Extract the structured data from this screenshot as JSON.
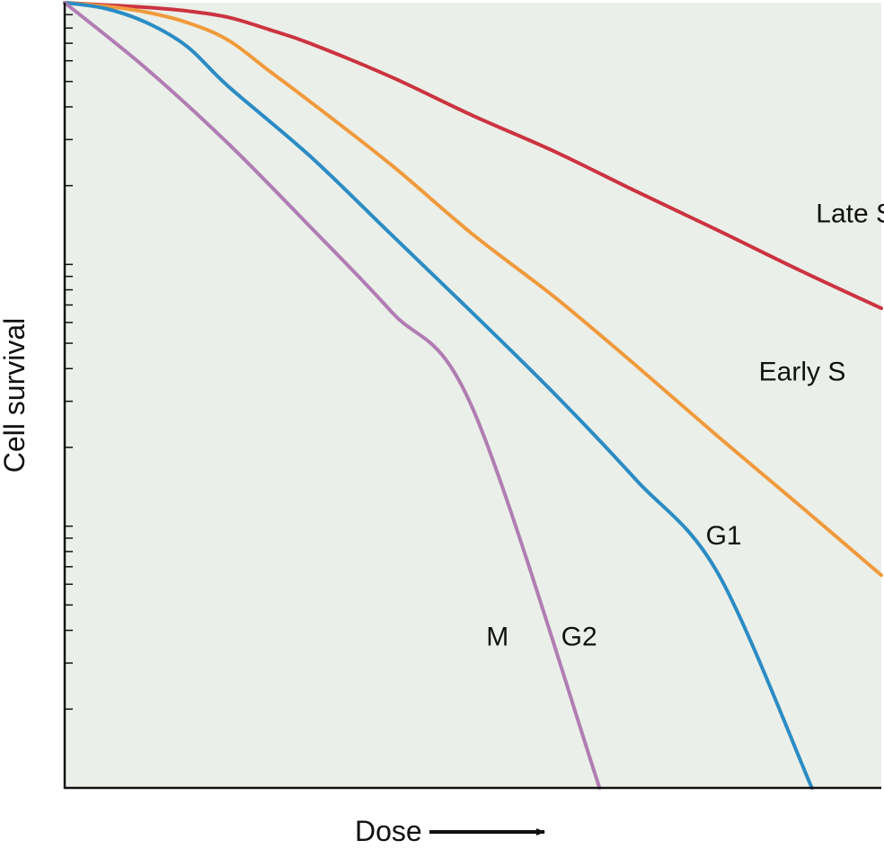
{
  "chart_data": {
    "type": "line",
    "title": "",
    "xlabel": "Dose",
    "ylabel": "Cell survival",
    "y_scale": "log",
    "y_decades": 3,
    "xlim": [
      0,
      10
    ],
    "ylim": [
      0.001,
      1
    ],
    "grid": false,
    "plot_background": "#ebefe9",
    "axis_color": "#111111",
    "series": [
      {
        "name": "Late S",
        "color": "#cc3340",
        "x": [
          0,
          0.5,
          1.0,
          1.5,
          2.0,
          2.5,
          3.0,
          4.0,
          5.0,
          6.0,
          7.0,
          8.0,
          9.0,
          10.0
        ],
        "y": [
          1.0,
          0.98,
          0.96,
          0.93,
          0.88,
          0.79,
          0.7,
          0.52,
          0.37,
          0.27,
          0.19,
          0.135,
          0.095,
          0.068
        ]
      },
      {
        "name": "Early S",
        "color": "#f09a3c",
        "x": [
          0,
          0.5,
          1.0,
          1.5,
          2.0,
          2.5,
          3.0,
          4.0,
          5.0,
          6.0,
          7.0,
          8.0,
          9.0,
          10.0
        ],
        "y": [
          1.0,
          0.97,
          0.92,
          0.84,
          0.72,
          0.55,
          0.42,
          0.24,
          0.13,
          0.075,
          0.041,
          0.022,
          0.012,
          0.0065
        ]
      },
      {
        "name": "G1",
        "color": "#2b8cc4",
        "x": [
          0,
          0.5,
          1.0,
          1.5,
          2.0,
          3.0,
          4.0,
          5.0,
          6.0,
          7.0,
          8.0,
          9.15
        ],
        "y": [
          1.0,
          0.95,
          0.84,
          0.68,
          0.48,
          0.26,
          0.13,
          0.065,
          0.032,
          0.015,
          0.0066,
          0.001
        ]
      },
      {
        "name": "M",
        "color": "#b07db3",
        "x": [
          0,
          1.0,
          2.0,
          3.0,
          4.0,
          5.0,
          6.55
        ],
        "y": [
          1.0,
          0.56,
          0.29,
          0.14,
          0.066,
          0.028,
          0.001
        ]
      }
    ],
    "annotations": [
      {
        "text": "Late S",
        "x": 9.2,
        "y": 0.145,
        "anchor": "start"
      },
      {
        "text": "Early S",
        "x": 8.5,
        "y": 0.036,
        "anchor": "start"
      },
      {
        "text": "G1",
        "x": 7.85,
        "y": 0.0085,
        "anchor": "start"
      },
      {
        "text": "M",
        "x": 5.3,
        "y": 0.0035,
        "anchor": "middle"
      },
      {
        "text": "G2",
        "x": 6.3,
        "y": 0.0035,
        "anchor": "middle"
      }
    ]
  }
}
